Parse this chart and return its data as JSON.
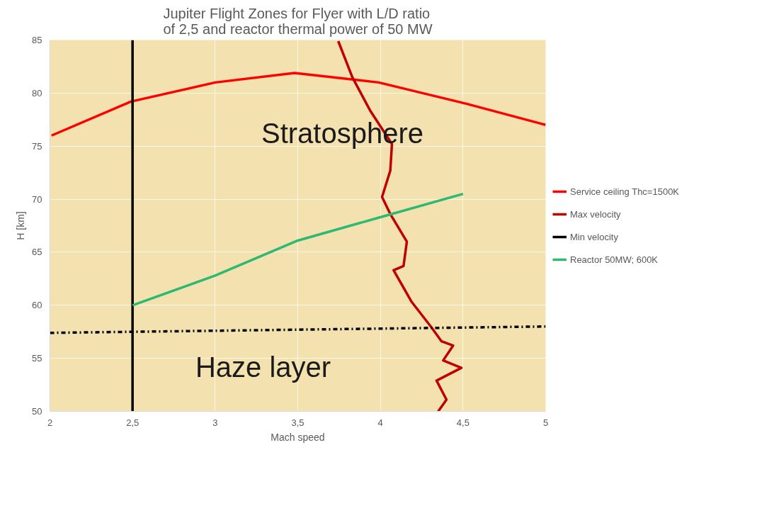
{
  "chart_data": {
    "type": "line",
    "title": "Jupiter Flight Zones for Flyer with L/D ratio of 2,5 and reactor thermal power of 50 MW",
    "xlabel": "Mach speed",
    "ylabel": "H [km]",
    "xlim": [
      2,
      5
    ],
    "xticks": [
      2,
      {
        "value": 2.5,
        "label": "2,5"
      },
      3,
      {
        "value": 3.5,
        "label": "3,5"
      },
      4,
      {
        "value": 4.5,
        "label": "4,5"
      },
      5
    ],
    "ylim": [
      50,
      85
    ],
    "yticks": [
      50,
      55,
      60,
      65,
      70,
      75,
      80,
      85
    ],
    "grid": true,
    "legend": "right",
    "series": [
      {
        "name": "Service ceiling Thc=1500K",
        "color": "#ff0000",
        "x": [
          2.01,
          2.49,
          3.0,
          3.48,
          3.99,
          4.52,
          5.0
        ],
        "values": [
          76.0,
          79.2,
          81.0,
          81.9,
          81.0,
          79.0,
          77.0
        ]
      },
      {
        "name": "Max velocity",
        "color": "#c00000",
        "x": [
          3.745,
          3.83,
          3.94,
          4.07,
          4.06,
          4.01,
          4.06,
          4.16,
          4.14,
          4.08,
          4.19,
          4.31,
          4.37,
          4.44,
          4.38,
          4.49,
          4.34,
          4.4,
          4.35
        ],
        "values": [
          84.9,
          81.5,
          78.3,
          75.2,
          72.7,
          70.2,
          68.6,
          66.0,
          63.7,
          63.3,
          60.3,
          57.9,
          56.6,
          56.2,
          54.8,
          54.1,
          52.9,
          51.1,
          50.0
        ]
      },
      {
        "name": "Min velocity",
        "color": "#000000",
        "x": [
          2.5,
          2.5
        ],
        "values": [
          50,
          85
        ]
      },
      {
        "name": "Reactor 50MW; 600K",
        "color": "#2eb872",
        "x": [
          2.5,
          3.0,
          3.5,
          4.0,
          4.5
        ],
        "values": [
          60.0,
          62.8,
          66.1,
          68.3,
          70.5
        ]
      },
      {
        "color": "#000000",
        "line_style": "dashdot",
        "x": [
          2,
          5
        ],
        "values": [
          57.4,
          58.0
        ]
      }
    ],
    "annotations": [
      "Stratosphere",
      "Haze layer"
    ]
  }
}
